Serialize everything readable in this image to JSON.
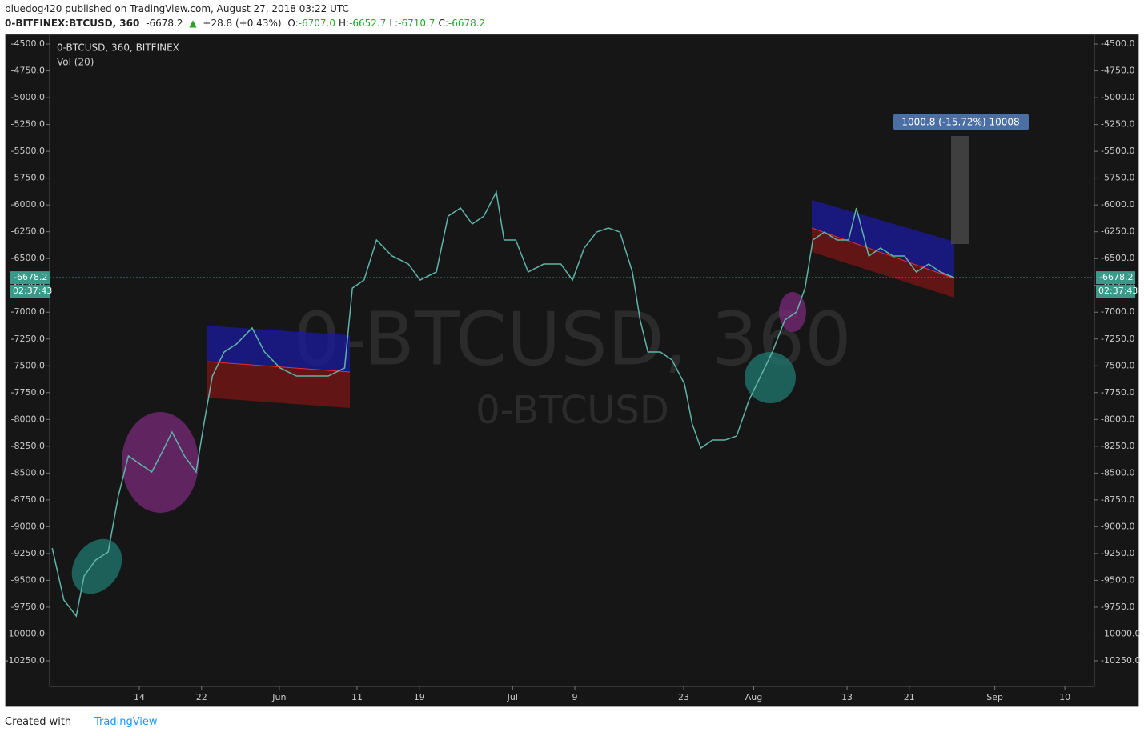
{
  "header": {
    "author_line": "bluedog420 published on TradingView.com, August 27, 2018 03:22 UTC",
    "symbol": "0-BITFINEX:BTCUSD, 360",
    "price": "-6678.2",
    "arrow": "▲",
    "change": "+28.8 (+0.43%)",
    "ohlc": [
      {
        "key": "O:",
        "value": "-6707.0"
      },
      {
        "key": "H:",
        "value": "-6652.7"
      },
      {
        "key": "L:",
        "value": "-6710.7"
      },
      {
        "key": "C:",
        "value": "-6678.2"
      }
    ]
  },
  "chart_data": {
    "type": "line",
    "legend_title": "0-BTCUSD, 360, BITFINEX",
    "legend_volume": "Vol (20)",
    "watermark": "0-BTCUSD, 360",
    "watermark_sub": "0-BTCUSD",
    "measure_label": "1000.8 (-15.72%) 10008",
    "last_price": -6678.2,
    "countdown": "02:37:43",
    "x": [
      2.8,
      4.3,
      5.9,
      6.9,
      8.4,
      10,
      11.3,
      12.6,
      14.1,
      15.6,
      17.2,
      18.2,
      19.8,
      21.3,
      22.3,
      23.4,
      24.9,
      26.5,
      28.5,
      30.1,
      32.1,
      34.2,
      36.2,
      38.3,
      40.4,
      41.4,
      42.9,
      44.5,
      46.5,
      48.6,
      50.1,
      52.2,
      53.7,
      55.3,
      56.8,
      58.3,
      59.9,
      60.9,
      62.4,
      64,
      66,
      68.2,
      69.7,
      71.2,
      72.8,
      74.3,
      75.8,
      77.4,
      78.4,
      79.4,
      81,
      82.5,
      84.1,
      85.1,
      86.2,
      87.7,
      89.3,
      90.8,
      92.4,
      93.9,
      95.4,
      97,
      98.5,
      99.6,
      100.6,
      102.1,
      103.7,
      105.2,
      106.2,
      107.8,
      109.3,
      110.9,
      112.4,
      113.9,
      115.5,
      117,
      118.8
    ],
    "series": [
      {
        "name": "0-BTCUSD, 360, BITFINEX",
        "color": "#5fb4a8",
        "values": [
          -9199,
          -9683,
          -9833,
          -9460,
          -9310,
          -9236,
          -8714,
          -8341,
          -8416,
          -8490,
          -8267,
          -8117,
          -8341,
          -8490,
          -8043,
          -7595,
          -7371,
          -7297,
          -7147,
          -7371,
          -7520,
          -7595,
          -7595,
          -7595,
          -7520,
          -6775,
          -6700,
          -6327,
          -6476,
          -6551,
          -6700,
          -6625,
          -6104,
          -6029,
          -6178,
          -6104,
          -5880,
          -6327,
          -6327,
          -6625,
          -6551,
          -6551,
          -6700,
          -6402,
          -6253,
          -6215,
          -6253,
          -6625,
          -7073,
          -7371,
          -7371,
          -7446,
          -7669,
          -8043,
          -8267,
          -8192,
          -8192,
          -8155,
          -7819,
          -7595,
          -7371,
          -7073,
          -6998,
          -6775,
          -6327,
          -6253,
          -6327,
          -6327,
          -6029,
          -6476,
          -6402,
          -6476,
          -6476,
          -6625,
          -6551,
          -6625,
          -6678.2
        ]
      }
    ],
    "xlim": [
      2.47,
      136.8
    ],
    "xticks": [
      {
        "value": 14,
        "label": "14"
      },
      {
        "value": 22,
        "label": "22"
      },
      {
        "value": 32,
        "label": "Jun"
      },
      {
        "value": 42,
        "label": "11"
      },
      {
        "value": 50,
        "label": "19"
      },
      {
        "value": 62,
        "label": "Jul"
      },
      {
        "value": 70,
        "label": "9"
      },
      {
        "value": 84,
        "label": "23"
      },
      {
        "value": 93,
        "label": "Aug"
      },
      {
        "value": 105,
        "label": "13"
      },
      {
        "value": 113,
        "label": "21"
      },
      {
        "value": 124,
        "label": "Sep"
      },
      {
        "value": 133,
        "label": "10"
      }
    ],
    "ylim": [
      -10489,
      -4410
    ],
    "yticks": [
      {
        "value": -4500,
        "label": "-4500.0"
      },
      {
        "value": -4750,
        "label": "-4750.0"
      },
      {
        "value": -5000,
        "label": "-5000.0"
      },
      {
        "value": -5250,
        "label": "-5250.0"
      },
      {
        "value": -5500,
        "label": "-5500.0"
      },
      {
        "value": -5750,
        "label": "-5750.0"
      },
      {
        "value": -6000,
        "label": "-6000.0"
      },
      {
        "value": -6250,
        "label": "-6250.0"
      },
      {
        "value": -6500,
        "label": "-6500.0"
      },
      {
        "value": -6750,
        "label": "-6750.0"
      },
      {
        "value": -7000,
        "label": "-7000.0"
      },
      {
        "value": -7250,
        "label": "-7250.0"
      },
      {
        "value": -7500,
        "label": "-7500.0"
      },
      {
        "value": -7750,
        "label": "-7750.0"
      },
      {
        "value": -8000,
        "label": "-8000.0"
      },
      {
        "value": -8250,
        "label": "-8250.0"
      },
      {
        "value": -8500,
        "label": "-8500.0"
      },
      {
        "value": -8750,
        "label": "-8750.0"
      },
      {
        "value": -9000,
        "label": "-9000.0"
      },
      {
        "value": -9250,
        "label": "-9250.0"
      },
      {
        "value": -9500,
        "label": "-9500.0"
      },
      {
        "value": -9750,
        "label": "-9750.0"
      },
      {
        "value": -10000,
        "label": "-10000.0"
      },
      {
        "value": -10250,
        "label": "-10250.0"
      }
    ]
  },
  "footer": {
    "created": "Created with",
    "brand": "TradingView"
  }
}
